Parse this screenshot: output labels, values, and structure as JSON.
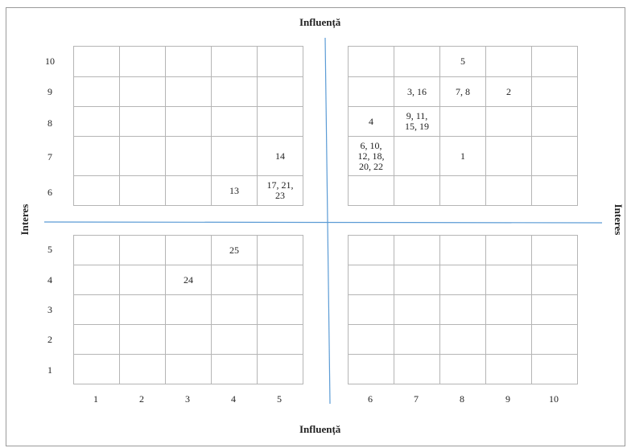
{
  "axes": {
    "top_label": "Influență",
    "bottom_label": "Influență",
    "left_label": "Interes",
    "right_label": "Interes",
    "line_color": "#5b9bd5"
  },
  "x_ticks_left": [
    "1",
    "2",
    "3",
    "4",
    "5"
  ],
  "x_ticks_right": [
    "6",
    "7",
    "8",
    "9",
    "10"
  ],
  "y_ticks_top": [
    "10",
    "9",
    "8",
    "7",
    "6"
  ],
  "y_ticks_bottom": [
    "5",
    "4",
    "3",
    "2",
    "1"
  ],
  "quadrants": {
    "top_left": [
      [
        "",
        "",
        "",
        "",
        ""
      ],
      [
        "",
        "",
        "",
        "",
        ""
      ],
      [
        "",
        "",
        "",
        "",
        ""
      ],
      [
        "",
        "",
        "",
        "",
        "14"
      ],
      [
        "",
        "",
        "",
        "13",
        "17, 21,\n23"
      ]
    ],
    "top_right": [
      [
        "",
        "",
        "5",
        "",
        ""
      ],
      [
        "",
        "3, 16",
        "7, 8",
        "2",
        ""
      ],
      [
        "4",
        "9, 11,\n15, 19",
        "",
        "",
        ""
      ],
      [
        "6, 10,\n12, 18,\n20, 22",
        "",
        "1",
        "",
        ""
      ],
      [
        "",
        "",
        "",
        "",
        ""
      ]
    ],
    "bottom_left": [
      [
        "",
        "",
        "",
        "25",
        ""
      ],
      [
        "",
        "",
        "24",
        "",
        ""
      ],
      [
        "",
        "",
        "",
        "",
        ""
      ],
      [
        "",
        "",
        "",
        "",
        ""
      ],
      [
        "",
        "",
        "",
        "",
        ""
      ]
    ],
    "bottom_right": [
      [
        "",
        "",
        "",
        "",
        ""
      ],
      [
        "",
        "",
        "",
        "",
        ""
      ],
      [
        "",
        "",
        "",
        "",
        ""
      ],
      [
        "",
        "",
        "",
        "",
        ""
      ],
      [
        "",
        "",
        "",
        "",
        ""
      ]
    ]
  }
}
